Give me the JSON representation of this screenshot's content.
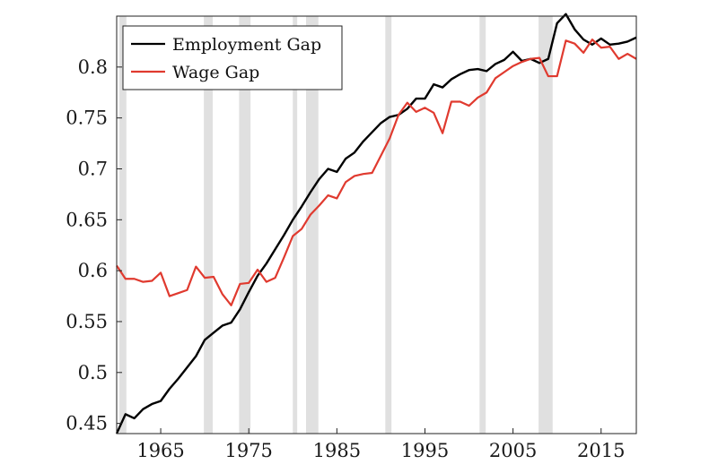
{
  "chart_data": {
    "type": "line",
    "title": "",
    "xlabel": "",
    "ylabel": "",
    "xlim": [
      1960,
      2019
    ],
    "ylim": [
      0.44,
      0.85
    ],
    "x_ticks": [
      1965,
      1975,
      1985,
      1995,
      2005,
      2015
    ],
    "y_ticks": [
      0.45,
      0.5,
      0.55,
      0.6,
      0.65,
      0.7,
      0.75,
      0.8
    ],
    "y_tick_labels": [
      "0.45",
      "0.5",
      "0.55",
      "0.6",
      "0.65",
      "0.7",
      "0.75",
      "0.8"
    ],
    "grid": false,
    "legend_position": "top-left",
    "recession_shading": [
      [
        1960.3,
        1961.1
      ],
      [
        1969.9,
        1970.9
      ],
      [
        1973.9,
        1975.2
      ],
      [
        1980.0,
        1980.5
      ],
      [
        1981.5,
        1982.9
      ],
      [
        1990.5,
        1991.2
      ],
      [
        2001.2,
        2001.9
      ],
      [
        2007.9,
        2009.5
      ]
    ],
    "x": [
      1960,
      1961,
      1962,
      1963,
      1964,
      1965,
      1966,
      1967,
      1968,
      1969,
      1970,
      1971,
      1972,
      1973,
      1974,
      1975,
      1976,
      1977,
      1978,
      1979,
      1980,
      1981,
      1982,
      1983,
      1984,
      1985,
      1986,
      1987,
      1988,
      1989,
      1990,
      1991,
      1992,
      1993,
      1994,
      1995,
      1996,
      1997,
      1998,
      1999,
      2000,
      2001,
      2002,
      2003,
      2004,
      2005,
      2006,
      2007,
      2008,
      2009,
      2010,
      2011,
      2012,
      2013,
      2014,
      2015,
      2016,
      2017,
      2018,
      2019
    ],
    "series": [
      {
        "name": "Employment Gap",
        "color": "#000000",
        "values": [
          0.44,
          0.459,
          0.455,
          0.464,
          0.469,
          0.472,
          0.484,
          0.494,
          0.505,
          0.516,
          0.532,
          0.539,
          0.546,
          0.549,
          0.562,
          0.579,
          0.595,
          0.607,
          0.621,
          0.635,
          0.65,
          0.663,
          0.677,
          0.69,
          0.7,
          0.697,
          0.71,
          0.716,
          0.727,
          0.736,
          0.745,
          0.751,
          0.753,
          0.759,
          0.769,
          0.769,
          0.783,
          0.78,
          0.788,
          0.793,
          0.797,
          0.798,
          0.796,
          0.803,
          0.807,
          0.815,
          0.806,
          0.808,
          0.804,
          0.808,
          0.843,
          0.852,
          0.837,
          0.827,
          0.822,
          0.828,
          0.822,
          0.823,
          0.825,
          0.829
        ]
      },
      {
        "name": "Wage Gap",
        "color": "#e03a2f",
        "values": [
          0.605,
          0.592,
          0.592,
          0.589,
          0.59,
          0.598,
          0.575,
          0.578,
          0.581,
          0.604,
          0.593,
          0.594,
          0.577,
          0.566,
          0.587,
          0.588,
          0.601,
          0.589,
          0.593,
          0.613,
          0.634,
          0.641,
          0.655,
          0.664,
          0.674,
          0.671,
          0.687,
          0.693,
          0.695,
          0.696,
          0.713,
          0.73,
          0.753,
          0.765,
          0.756,
          0.76,
          0.755,
          0.735,
          0.766,
          0.766,
          0.762,
          0.77,
          0.775,
          0.789,
          0.795,
          0.801,
          0.805,
          0.808,
          0.809,
          0.791,
          0.791,
          0.826,
          0.823,
          0.814,
          0.827,
          0.819,
          0.82,
          0.808,
          0.813,
          0.808
        ]
      }
    ]
  }
}
